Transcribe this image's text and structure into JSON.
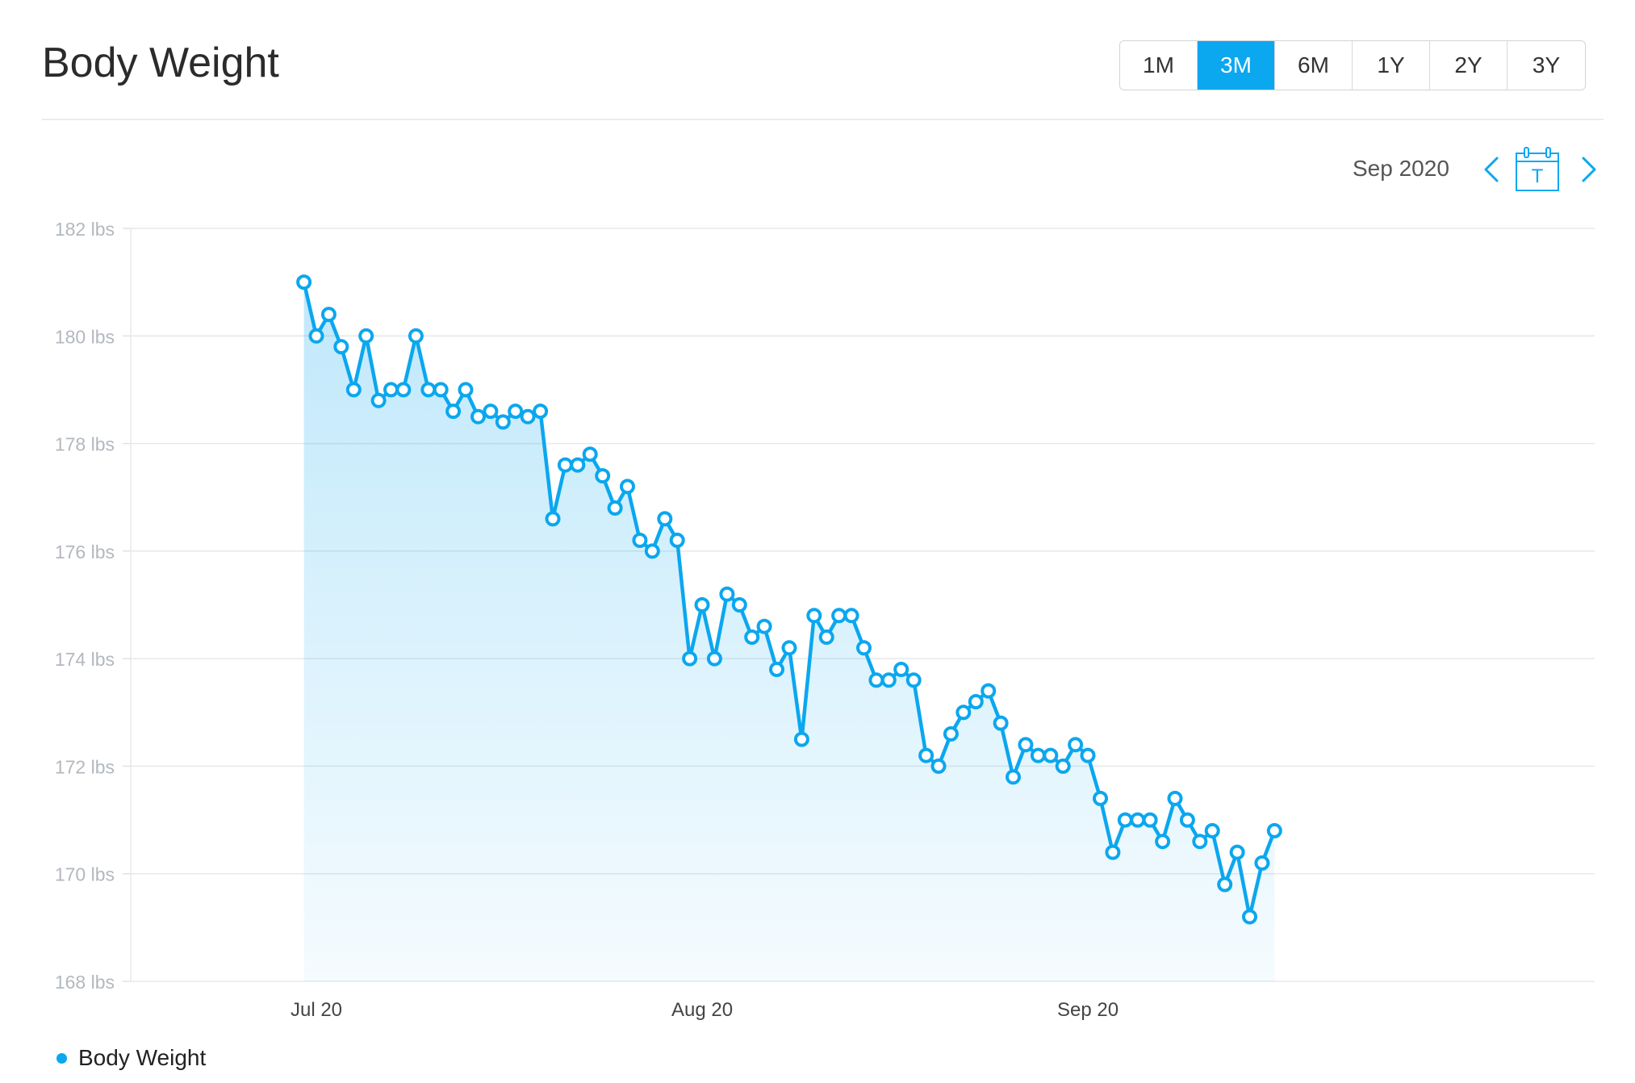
{
  "header": {
    "title": "Body Weight",
    "ranges": [
      {
        "label": "1M",
        "active": false
      },
      {
        "label": "3M",
        "active": true
      },
      {
        "label": "6M",
        "active": false
      },
      {
        "label": "1Y",
        "active": false
      },
      {
        "label": "2Y",
        "active": false
      },
      {
        "label": "3Y",
        "active": false
      }
    ]
  },
  "nav": {
    "period": "Sep 2020",
    "prev_icon": "chevron-left-icon",
    "next_icon": "chevron-right-icon",
    "today_icon": "calendar-today-icon",
    "today_letter": "T"
  },
  "colors": {
    "accent": "#0ba7ef",
    "grid": "#e6e8eb",
    "tick_text": "#b3b8bf"
  },
  "chart_data": {
    "type": "area",
    "title": "",
    "xlabel": "",
    "ylabel": "",
    "ylim": [
      168,
      182
    ],
    "y_ticks": [
      "182 lbs",
      "180 lbs",
      "178 lbs",
      "176 lbs",
      "174 lbs",
      "172 lbs",
      "170 lbs",
      "168 lbs"
    ],
    "x_ticks": [
      "Jul 20",
      "Aug 20",
      "Sep 20"
    ],
    "grid": true,
    "legend_position": "bottom-left",
    "series": [
      {
        "name": "Body Weight",
        "color": "#0ba7ef",
        "start_date": "2020-07-19",
        "values": [
          181.0,
          180.0,
          180.4,
          179.8,
          179.0,
          180.0,
          178.8,
          179.0,
          179.0,
          180.0,
          179.0,
          179.0,
          178.6,
          179.0,
          178.5,
          178.6,
          178.4,
          178.6,
          178.5,
          178.6,
          176.6,
          177.6,
          177.6,
          177.8,
          177.4,
          176.8,
          177.2,
          176.2,
          176.0,
          176.6,
          176.2,
          174.0,
          175.0,
          174.0,
          175.2,
          175.0,
          174.4,
          174.6,
          173.8,
          174.2,
          172.5,
          174.8,
          174.4,
          174.8,
          174.8,
          174.2,
          173.6,
          173.6,
          173.8,
          173.6,
          172.2,
          172.0,
          172.6,
          173.0,
          173.2,
          173.4,
          172.8,
          171.8,
          172.4,
          172.2,
          172.2,
          172.0,
          172.4,
          172.2,
          171.4,
          170.4,
          171.0,
          171.0,
          171.0,
          170.6,
          171.4,
          171.0,
          170.6,
          170.8,
          169.8,
          170.4,
          169.2,
          170.2,
          170.8
        ]
      }
    ]
  },
  "legend": {
    "label": "Body Weight"
  }
}
